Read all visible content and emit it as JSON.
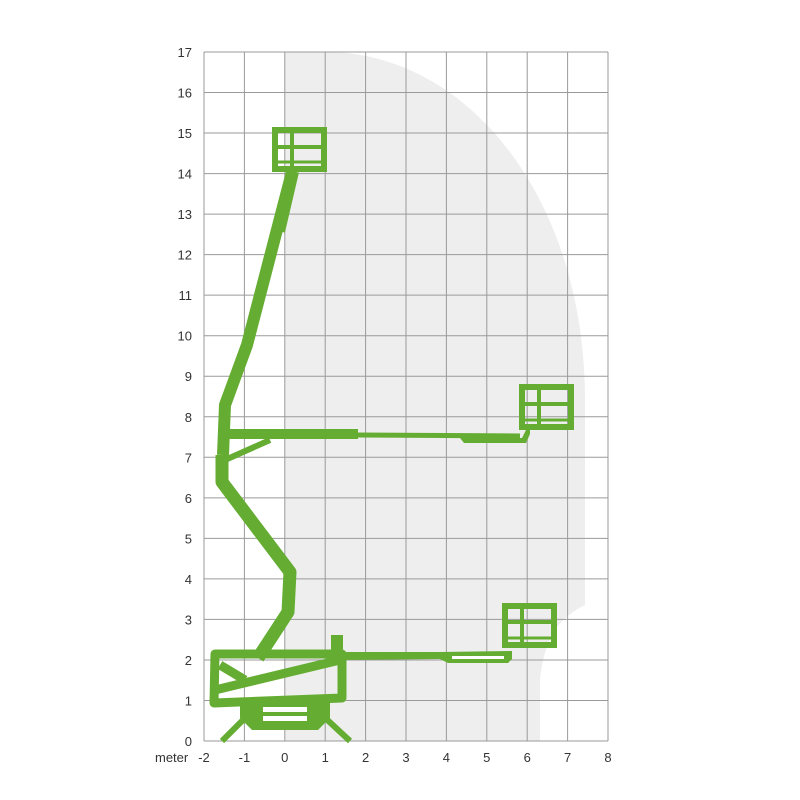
{
  "diagram": {
    "x_axis_label": "meter",
    "x_ticks": [
      "-2",
      "-1",
      "0",
      "1",
      "2",
      "3",
      "4",
      "5",
      "6",
      "7",
      "8"
    ],
    "y_ticks": [
      "0",
      "1",
      "2",
      "3",
      "4",
      "5",
      "6",
      "7",
      "8",
      "9",
      "10",
      "11",
      "12",
      "13",
      "14",
      "15",
      "16",
      "17"
    ],
    "x_range": [
      -2,
      8
    ],
    "y_range": [
      0,
      17
    ],
    "grid": true,
    "colors": {
      "machine": "#65ad32",
      "envelope": "#eeeeee",
      "grid": "#9a9a9a"
    }
  }
}
